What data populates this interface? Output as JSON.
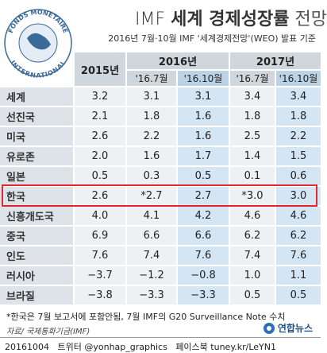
{
  "header": {
    "title_prefix": "IMF",
    "title_main": "세계 경제성장률",
    "title_suffix": "전망",
    "subtitle": "2016년 7월·10월 IMF '세계경제전망'(WEO) 발표 기준",
    "logo": {
      "top": "FONDS MONETAIRE",
      "bottom": "INTERNATIONAL"
    }
  },
  "table": {
    "years": [
      "2015년",
      "2016년",
      "2017년"
    ],
    "subheaders": [
      "'16.7월",
      "'16.10월",
      "'16.7월",
      "'16.10월"
    ],
    "rows": [
      [
        "세계",
        "3.2",
        "3.1",
        "3.1",
        "3.4",
        "3.4"
      ],
      [
        "선진국",
        "2.1",
        "1.8",
        "1.6",
        "1.8",
        "1.8"
      ],
      [
        "미국",
        "2.6",
        "2.2",
        "1.6",
        "2.5",
        "2.2"
      ],
      [
        "유로존",
        "2.0",
        "1.6",
        "1.7",
        "1.4",
        "1.5"
      ],
      [
        "일본",
        "0.5",
        "0.3",
        "0.5",
        "0.1",
        "0.6"
      ],
      [
        "한국",
        "2.6",
        "*2.7",
        "2.7",
        "*3.0",
        "3.0"
      ],
      [
        "신흥개도국",
        "4.0",
        "4.1",
        "4.2",
        "4.6",
        "4.6"
      ],
      [
        "중국",
        "6.9",
        "6.6",
        "6.6",
        "6.2",
        "6.2"
      ],
      [
        "인도",
        "7.6",
        "7.4",
        "7.6",
        "7.4",
        "7.6"
      ],
      [
        "러시아",
        "−3.7",
        "−1.2",
        "−0.8",
        "1.0",
        "1.1"
      ],
      [
        "브라질",
        "−3.8",
        "−3.3",
        "−3.3",
        "0.5",
        "0.5"
      ]
    ]
  },
  "footer": {
    "note": "*한국은 7월 보고서에 포함안됨, 7월 IMF의 G20 Surveillance Note 수치",
    "source": "자료/ 국제통화기금(IMF)",
    "brand": "연합뉴스",
    "date": "20161004",
    "twitter": "트위터 @yonhap_graphics",
    "facebook": "페이스북 tuney.kr/LeYN1"
  }
}
